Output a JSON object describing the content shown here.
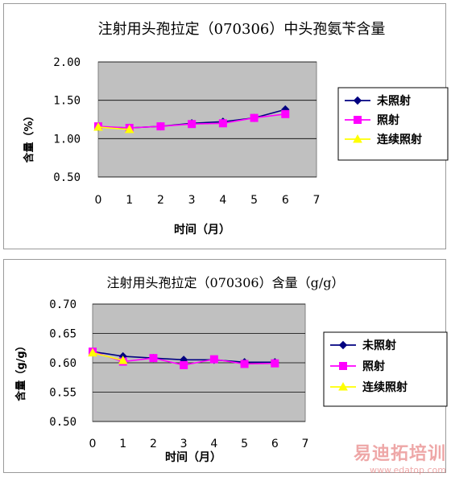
{
  "chart_data": [
    {
      "type": "line",
      "title": "注射用头孢拉定（070306）中头孢氨苄含量",
      "xlabel": "时间（月）",
      "ylabel": "含量（%）",
      "xlim": [
        0,
        7
      ],
      "ylim": [
        0.5,
        2.0
      ],
      "x_ticks": [
        "0",
        "1",
        "2",
        "3",
        "4",
        "5",
        "6",
        "7"
      ],
      "y_ticks": [
        "0.50",
        "1.00",
        "1.50",
        "2.00"
      ],
      "grid": true,
      "legend_position": "right",
      "plot_bg": "#c0c0c0",
      "series": [
        {
          "name": "未照射",
          "color": "#000080",
          "marker": "diamond",
          "x": [
            0,
            1,
            2,
            3,
            4,
            5,
            6
          ],
          "y": [
            1.15,
            1.14,
            1.16,
            1.2,
            1.22,
            1.27,
            1.38
          ]
        },
        {
          "name": "照射",
          "color": "#ff00ff",
          "marker": "square",
          "x": [
            0,
            1,
            2,
            3,
            4,
            5,
            6
          ],
          "y": [
            1.16,
            1.14,
            1.16,
            1.19,
            1.2,
            1.27,
            1.32
          ]
        },
        {
          "name": "连续照射",
          "color": "#ffff00",
          "marker": "triangle",
          "x": [
            0,
            1
          ],
          "y": [
            1.15,
            1.12
          ]
        }
      ]
    },
    {
      "type": "line",
      "title": "注射用头孢拉定（070306）含量（g/g）",
      "xlabel": "时间（月）",
      "ylabel": "含量（g/g）",
      "xlim": [
        0,
        7
      ],
      "ylim": [
        0.5,
        0.7
      ],
      "x_ticks": [
        "0",
        "1",
        "2",
        "3",
        "4",
        "5",
        "6",
        "7"
      ],
      "y_ticks": [
        "0.50",
        "0.55",
        "0.60",
        "0.65",
        "0.70"
      ],
      "grid": true,
      "legend_position": "right",
      "plot_bg": "#c0c0c0",
      "series": [
        {
          "name": "未照射",
          "color": "#000080",
          "marker": "diamond",
          "x": [
            0,
            1,
            2,
            3,
            4,
            5,
            6
          ],
          "y": [
            0.619,
            0.611,
            0.608,
            0.605,
            0.605,
            0.601,
            0.601
          ]
        },
        {
          "name": "照射",
          "color": "#ff00ff",
          "marker": "square",
          "x": [
            0,
            1,
            2,
            3,
            4,
            5,
            6
          ],
          "y": [
            0.619,
            0.602,
            0.608,
            0.596,
            0.606,
            0.598,
            0.599
          ]
        },
        {
          "name": "连续照射",
          "color": "#ffff00",
          "marker": "triangle",
          "x": [
            0,
            1
          ],
          "y": [
            0.617,
            0.604
          ]
        }
      ]
    }
  ],
  "watermark": {
    "text": "易迪拓培训",
    "url": "www.edatop.com"
  }
}
